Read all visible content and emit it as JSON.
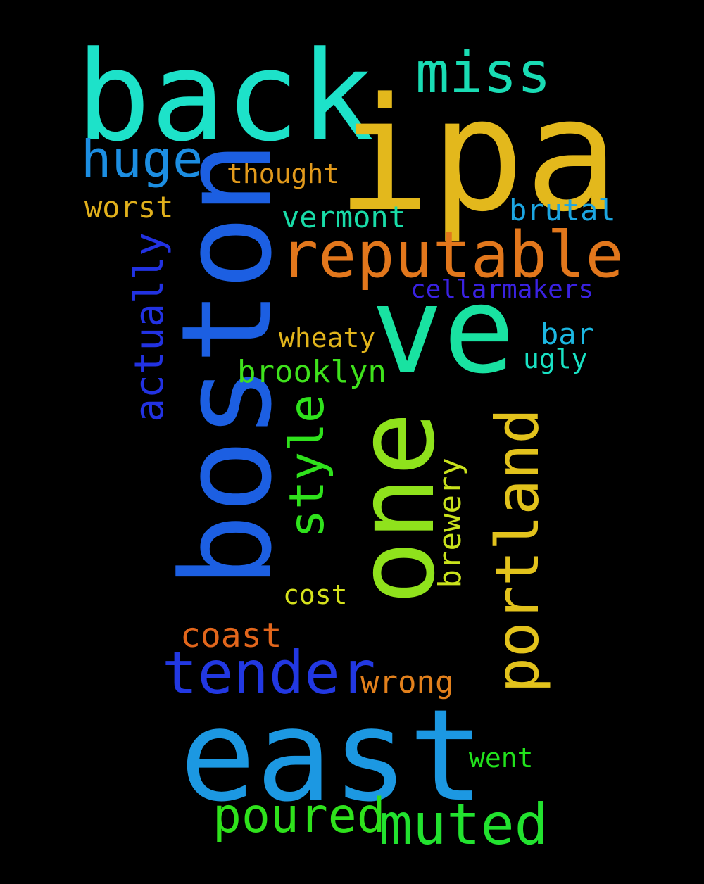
{
  "words": [
    {
      "id": "back",
      "text": "back",
      "color": "#1de2c9"
    },
    {
      "id": "ipa",
      "text": "ipa",
      "color": "#e3b81c"
    },
    {
      "id": "miss",
      "text": "miss",
      "color": "#19dcb4"
    },
    {
      "id": "huge",
      "text": "huge",
      "color": "#1c8ee2"
    },
    {
      "id": "thought",
      "text": "thought",
      "color": "#e29a1c"
    },
    {
      "id": "worst",
      "text": "worst",
      "color": "#e2b11c"
    },
    {
      "id": "vermont",
      "text": "vermont",
      "color": "#19dca8"
    },
    {
      "id": "brutal",
      "text": "brutal",
      "color": "#1ca6e2"
    },
    {
      "id": "reputable",
      "text": "reputable",
      "color": "#e2771c"
    },
    {
      "id": "cellarmakers",
      "text": "cellarmakers",
      "color": "#3a22e2"
    },
    {
      "id": "ve",
      "text": "ve",
      "color": "#19e2a1"
    },
    {
      "id": "actually",
      "text": "actually",
      "color": "#2232e2"
    },
    {
      "id": "boston",
      "text": "boston",
      "color": "#1c5fe2"
    },
    {
      "id": "wheaty",
      "text": "wheaty",
      "color": "#e2b51c"
    },
    {
      "id": "bar",
      "text": "bar",
      "color": "#1cb8e2"
    },
    {
      "id": "ugly",
      "text": "ugly",
      "color": "#19e2c4"
    },
    {
      "id": "brooklyn",
      "text": "brooklyn",
      "color": "#3fe21c"
    },
    {
      "id": "one",
      "text": "one",
      "color": "#8fe21c"
    },
    {
      "id": "style",
      "text": "style",
      "color": "#2fe21c"
    },
    {
      "id": "portland",
      "text": "portland",
      "color": "#e2c21c"
    },
    {
      "id": "brewery",
      "text": "brewery",
      "color": "#c9e21c"
    },
    {
      "id": "cost",
      "text": "cost",
      "color": "#d6e21c"
    },
    {
      "id": "coast",
      "text": "coast",
      "color": "#e2661c"
    },
    {
      "id": "tender",
      "text": "tender",
      "color": "#2238e2"
    },
    {
      "id": "wrong",
      "text": "wrong",
      "color": "#e2801c"
    },
    {
      "id": "east",
      "text": "east",
      "color": "#1c98e2"
    },
    {
      "id": "went",
      "text": "went",
      "color": "#22e21c"
    },
    {
      "id": "poured",
      "text": "poured",
      "color": "#2fe21c"
    },
    {
      "id": "muted",
      "text": "muted",
      "color": "#22e22f"
    }
  ]
}
